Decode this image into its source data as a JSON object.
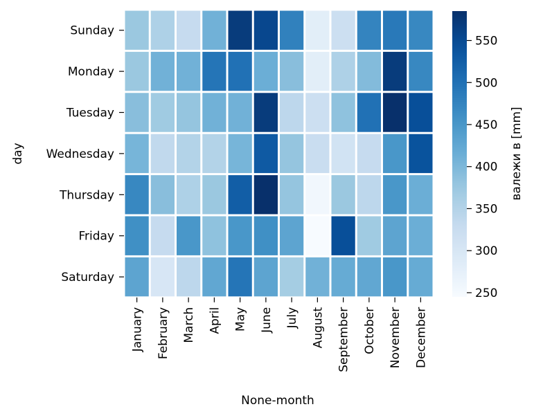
{
  "chart_data": {
    "type": "heatmap",
    "title": "",
    "xlabel": "None-month",
    "ylabel": "day",
    "colorbar_label": "валежи в [mm]",
    "colormap": "Blues",
    "vmin": 245,
    "vmax": 585,
    "colorbar_ticks": [
      250,
      300,
      350,
      400,
      450,
      500,
      550
    ],
    "rows": [
      "Sunday",
      "Monday",
      "Tuesday",
      "Wednesday",
      "Thursday",
      "Friday",
      "Saturday"
    ],
    "columns": [
      "January",
      "February",
      "March",
      "April",
      "May",
      "June",
      "July",
      "August",
      "September",
      "October",
      "November",
      "December"
    ],
    "values": [
      [
        375,
        355,
        330,
        410,
        570,
        555,
        480,
        280,
        320,
        475,
        490,
        470
      ],
      [
        375,
        410,
        410,
        495,
        500,
        415,
        390,
        280,
        355,
        395,
        570,
        470
      ],
      [
        390,
        370,
        380,
        410,
        410,
        570,
        340,
        320,
        385,
        500,
        585,
        545
      ],
      [
        405,
        335,
        350,
        350,
        405,
        530,
        380,
        325,
        310,
        330,
        450,
        540
      ],
      [
        470,
        390,
        355,
        375,
        525,
        585,
        380,
        255,
        375,
        340,
        450,
        415
      ],
      [
        460,
        330,
        450,
        385,
        450,
        460,
        430,
        245,
        545,
        370,
        430,
        415
      ],
      [
        430,
        300,
        340,
        425,
        495,
        430,
        365,
        410,
        420,
        425,
        450,
        420
      ]
    ]
  }
}
